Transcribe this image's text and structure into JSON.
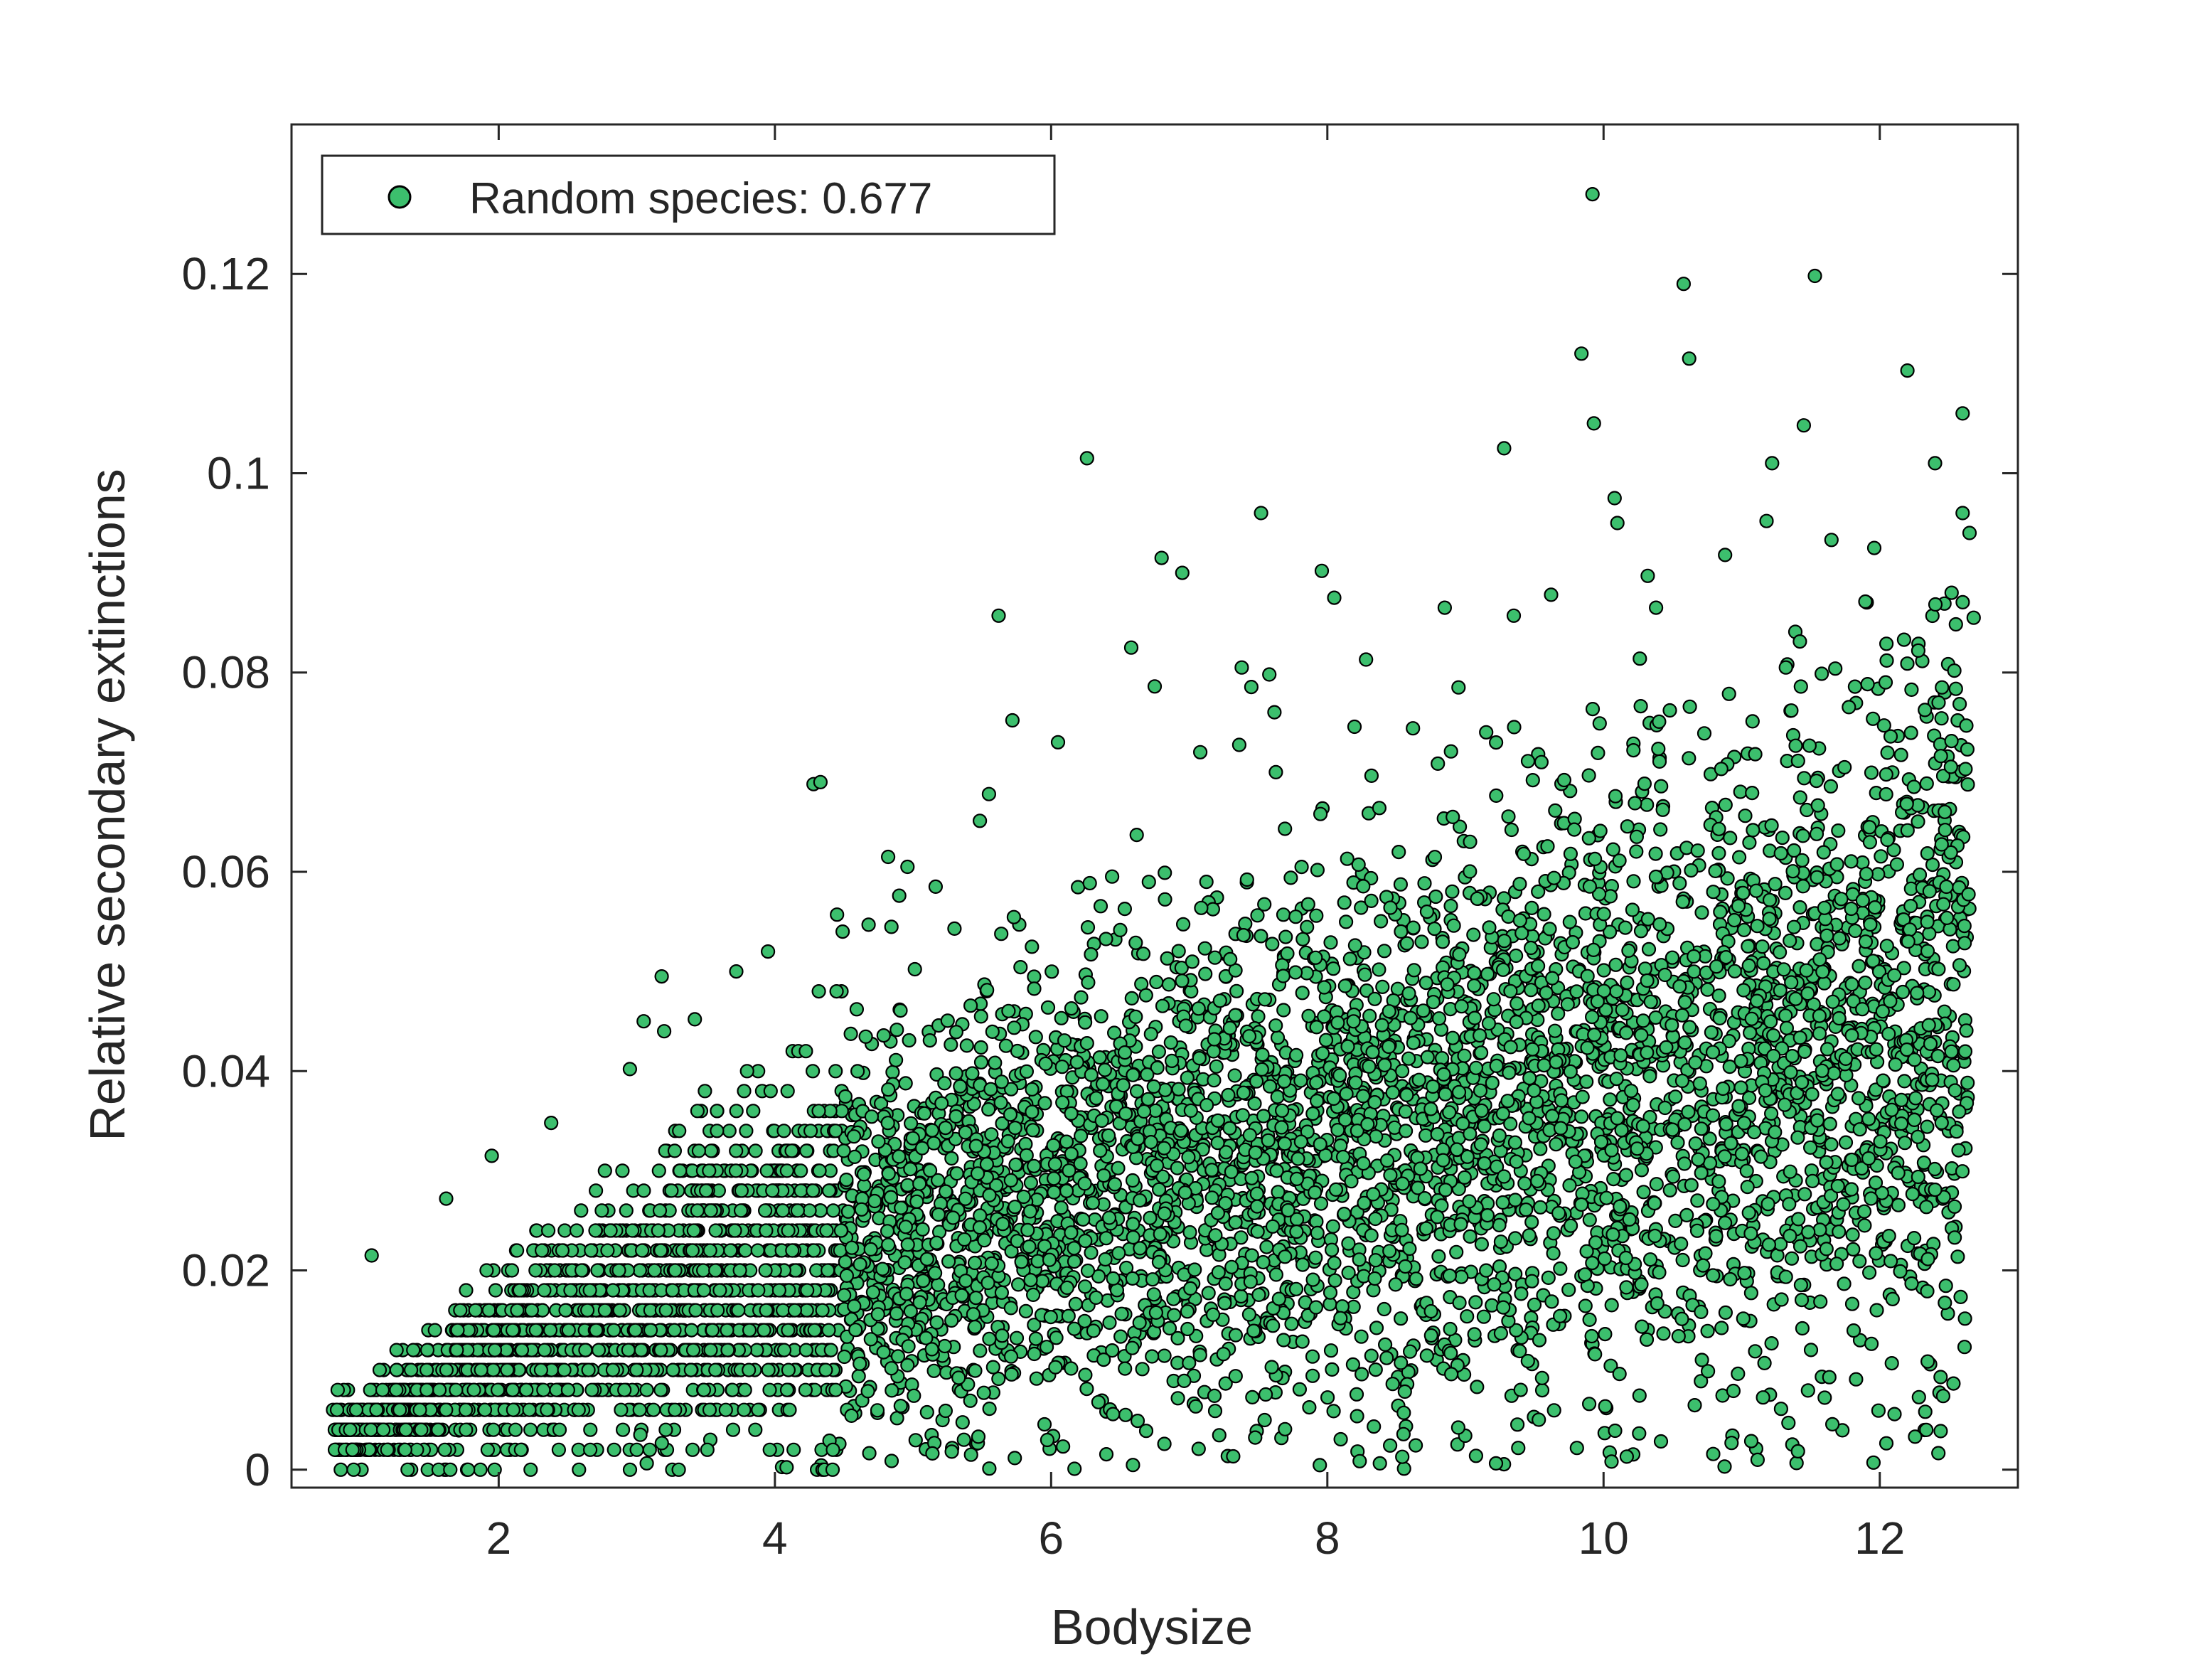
{
  "chart_data": {
    "type": "scatter",
    "xlabel": "Bodysize",
    "ylabel": "Relative secondary extinctions",
    "xlim": [
      0.5,
      13
    ],
    "ylim": [
      -0.0018,
      0.135
    ],
    "xticks": [
      2,
      4,
      6,
      8,
      10,
      12
    ],
    "yticks": [
      0,
      0.02,
      0.04,
      0.06,
      0.08,
      0.1,
      0.12
    ],
    "xtick_labels": [
      "2",
      "4",
      "6",
      "8",
      "10",
      "12"
    ],
    "ytick_labels": [
      "0",
      "0.02",
      "0.04",
      "0.06",
      "0.08",
      "0.1",
      "0.12"
    ],
    "grid": false,
    "box": true,
    "legend": {
      "position": "top-left",
      "entries": [
        "Random species: 0.677"
      ]
    },
    "series": [
      {
        "name": "Random species: 0.677",
        "color": "#3cbf6d",
        "edge_color": "#000000",
        "marker": "circle",
        "points": [
          [
            6.26,
            0.1015
          ],
          [
            7.52,
            0.096
          ],
          [
            9.28,
            0.1025
          ],
          [
            9.84,
            0.112
          ],
          [
            9.93,
            0.105
          ],
          [
            9.92,
            0.128
          ],
          [
            10.58,
            0.119
          ],
          [
            10.62,
            0.1115
          ],
          [
            11.53,
            0.1198
          ],
          [
            11.45,
            0.1048
          ],
          [
            12.2,
            0.1103
          ],
          [
            12.6,
            0.106
          ],
          [
            12.4,
            0.101
          ],
          [
            4.28,
            0.0688
          ],
          [
            4.33,
            0.069
          ],
          [
            5.62,
            0.0857
          ],
          [
            6.8,
            0.0915
          ],
          [
            6.95,
            0.09
          ],
          [
            8.05,
            0.0875
          ],
          [
            7.96,
            0.0902
          ],
          [
            9.35,
            0.0857
          ],
          [
            10.08,
            0.0975
          ],
          [
            10.32,
            0.0897
          ],
          [
            11.22,
            0.101
          ],
          [
            11.18,
            0.0952
          ],
          [
            12.6,
            0.096
          ],
          [
            12.65,
            0.094
          ],
          [
            11.65,
            0.0933
          ],
          [
            10.1,
            0.095
          ],
          [
            8.85,
            0.0865
          ],
          [
            3.18,
            0.0495
          ],
          [
            3.72,
            0.05
          ],
          [
            3.95,
            0.052
          ],
          [
            4.82,
            0.0615
          ],
          [
            4.96,
            0.0605
          ],
          [
            5.72,
            0.0752
          ],
          [
            6.05,
            0.073
          ],
          [
            6.58,
            0.0825
          ],
          [
            6.75,
            0.0786
          ],
          [
            7.08,
            0.072
          ],
          [
            7.38,
            0.0805
          ],
          [
            7.58,
            0.0798
          ],
          [
            8.28,
            0.0813
          ],
          [
            8.95,
            0.0785
          ],
          [
            9.62,
            0.0878
          ],
          [
            10.38,
            0.0865
          ],
          [
            10.88,
            0.0918
          ],
          [
            11.96,
            0.0925
          ],
          [
            12.52,
            0.088
          ],
          [
            12.68,
            0.0855
          ],
          [
            1.08,
            0.0215
          ],
          [
            1.62,
            0.0272
          ],
          [
            1.95,
            0.0315
          ],
          [
            2.38,
            0.0348
          ],
          [
            2.95,
            0.0402
          ],
          [
            3.05,
            0.045
          ],
          [
            3.42,
            0.0452
          ],
          [
            4.45,
            0.0557
          ],
          [
            4.9,
            0.0576
          ],
          [
            5.55,
            0.0678
          ],
          [
            5.3,
            0.0543
          ],
          [
            6.62,
            0.0637
          ],
          [
            7.95,
            0.0658
          ],
          [
            8.62,
            0.0744
          ],
          [
            9.15,
            0.074
          ],
          [
            9.55,
            0.071
          ],
          [
            10.48,
            0.0762
          ],
          [
            11.32,
            0.0805
          ],
          [
            12.05,
            0.0812
          ],
          [
            12.45,
            0.0785
          ]
        ],
        "cloud": {
          "total_points": 6000,
          "approx_n_points": 6000,
          "x_range": [
            0.8,
            12.65
          ],
          "y_range": [
            0,
            0.0875
          ],
          "mean_y_at_bodysize": [
            [
              1,
              0.004
            ],
            [
              2,
              0.011
            ],
            [
              3,
              0.016
            ],
            [
              4,
              0.021
            ],
            [
              5,
              0.025
            ],
            [
              6,
              0.028
            ],
            [
              7,
              0.031
            ],
            [
              8,
              0.033
            ],
            [
              9,
              0.035
            ],
            [
              10,
              0.038
            ],
            [
              11,
              0.04
            ],
            [
              12,
              0.044
            ],
            [
              12.6,
              0.046
            ]
          ],
          "y_quantization": 0.002
        }
      }
    ]
  }
}
